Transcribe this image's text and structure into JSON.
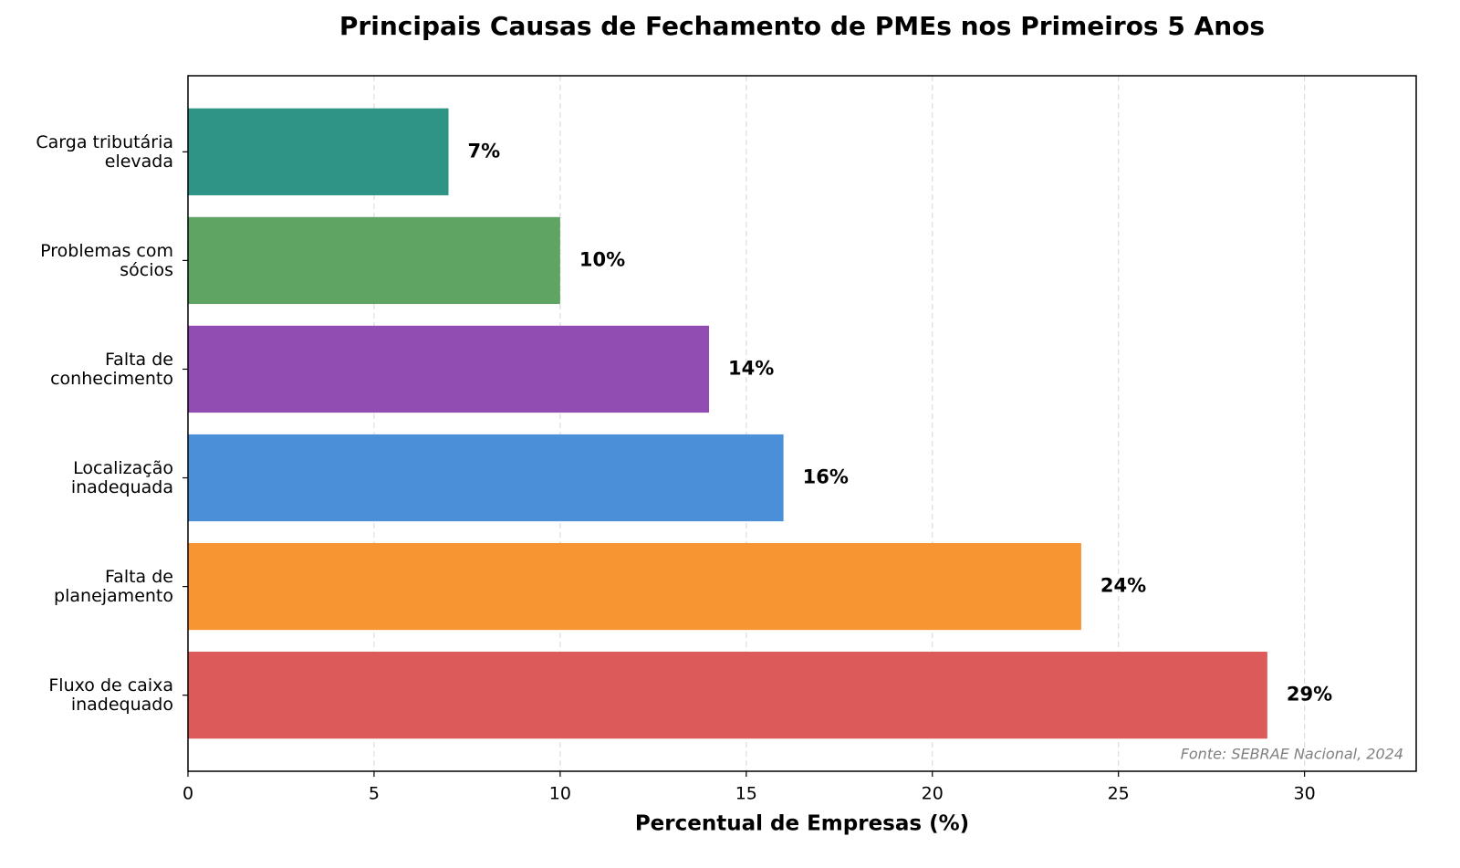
{
  "chart_data": {
    "type": "barh",
    "title": "Principais Causas de Fechamento de PMEs nos Primeiros 5 Anos",
    "xlabel": "Percentual de Empresas (%)",
    "annotation": "Fonte: SEBRAE Nacional, 2024",
    "categories": [
      "Fluxo de caixa\ninadequado",
      "Falta de\nplanejamento",
      "Localização\ninadequada",
      "Falta de\nconhecimento",
      "Problemas com\nsócios",
      "Carga tributária\nelevada"
    ],
    "values": [
      29,
      24,
      16,
      14,
      10,
      7
    ],
    "value_labels": [
      "29%",
      "24%",
      "16%",
      "14%",
      "10%",
      "7%"
    ],
    "colors": [
      "#dc5a5a",
      "#f79533",
      "#4a90d9",
      "#924db3",
      "#5fa463",
      "#2e9486"
    ],
    "xlim": [
      0,
      33
    ],
    "xticks": [
      0,
      5,
      10,
      15,
      20,
      25,
      30
    ],
    "grid": true
  }
}
